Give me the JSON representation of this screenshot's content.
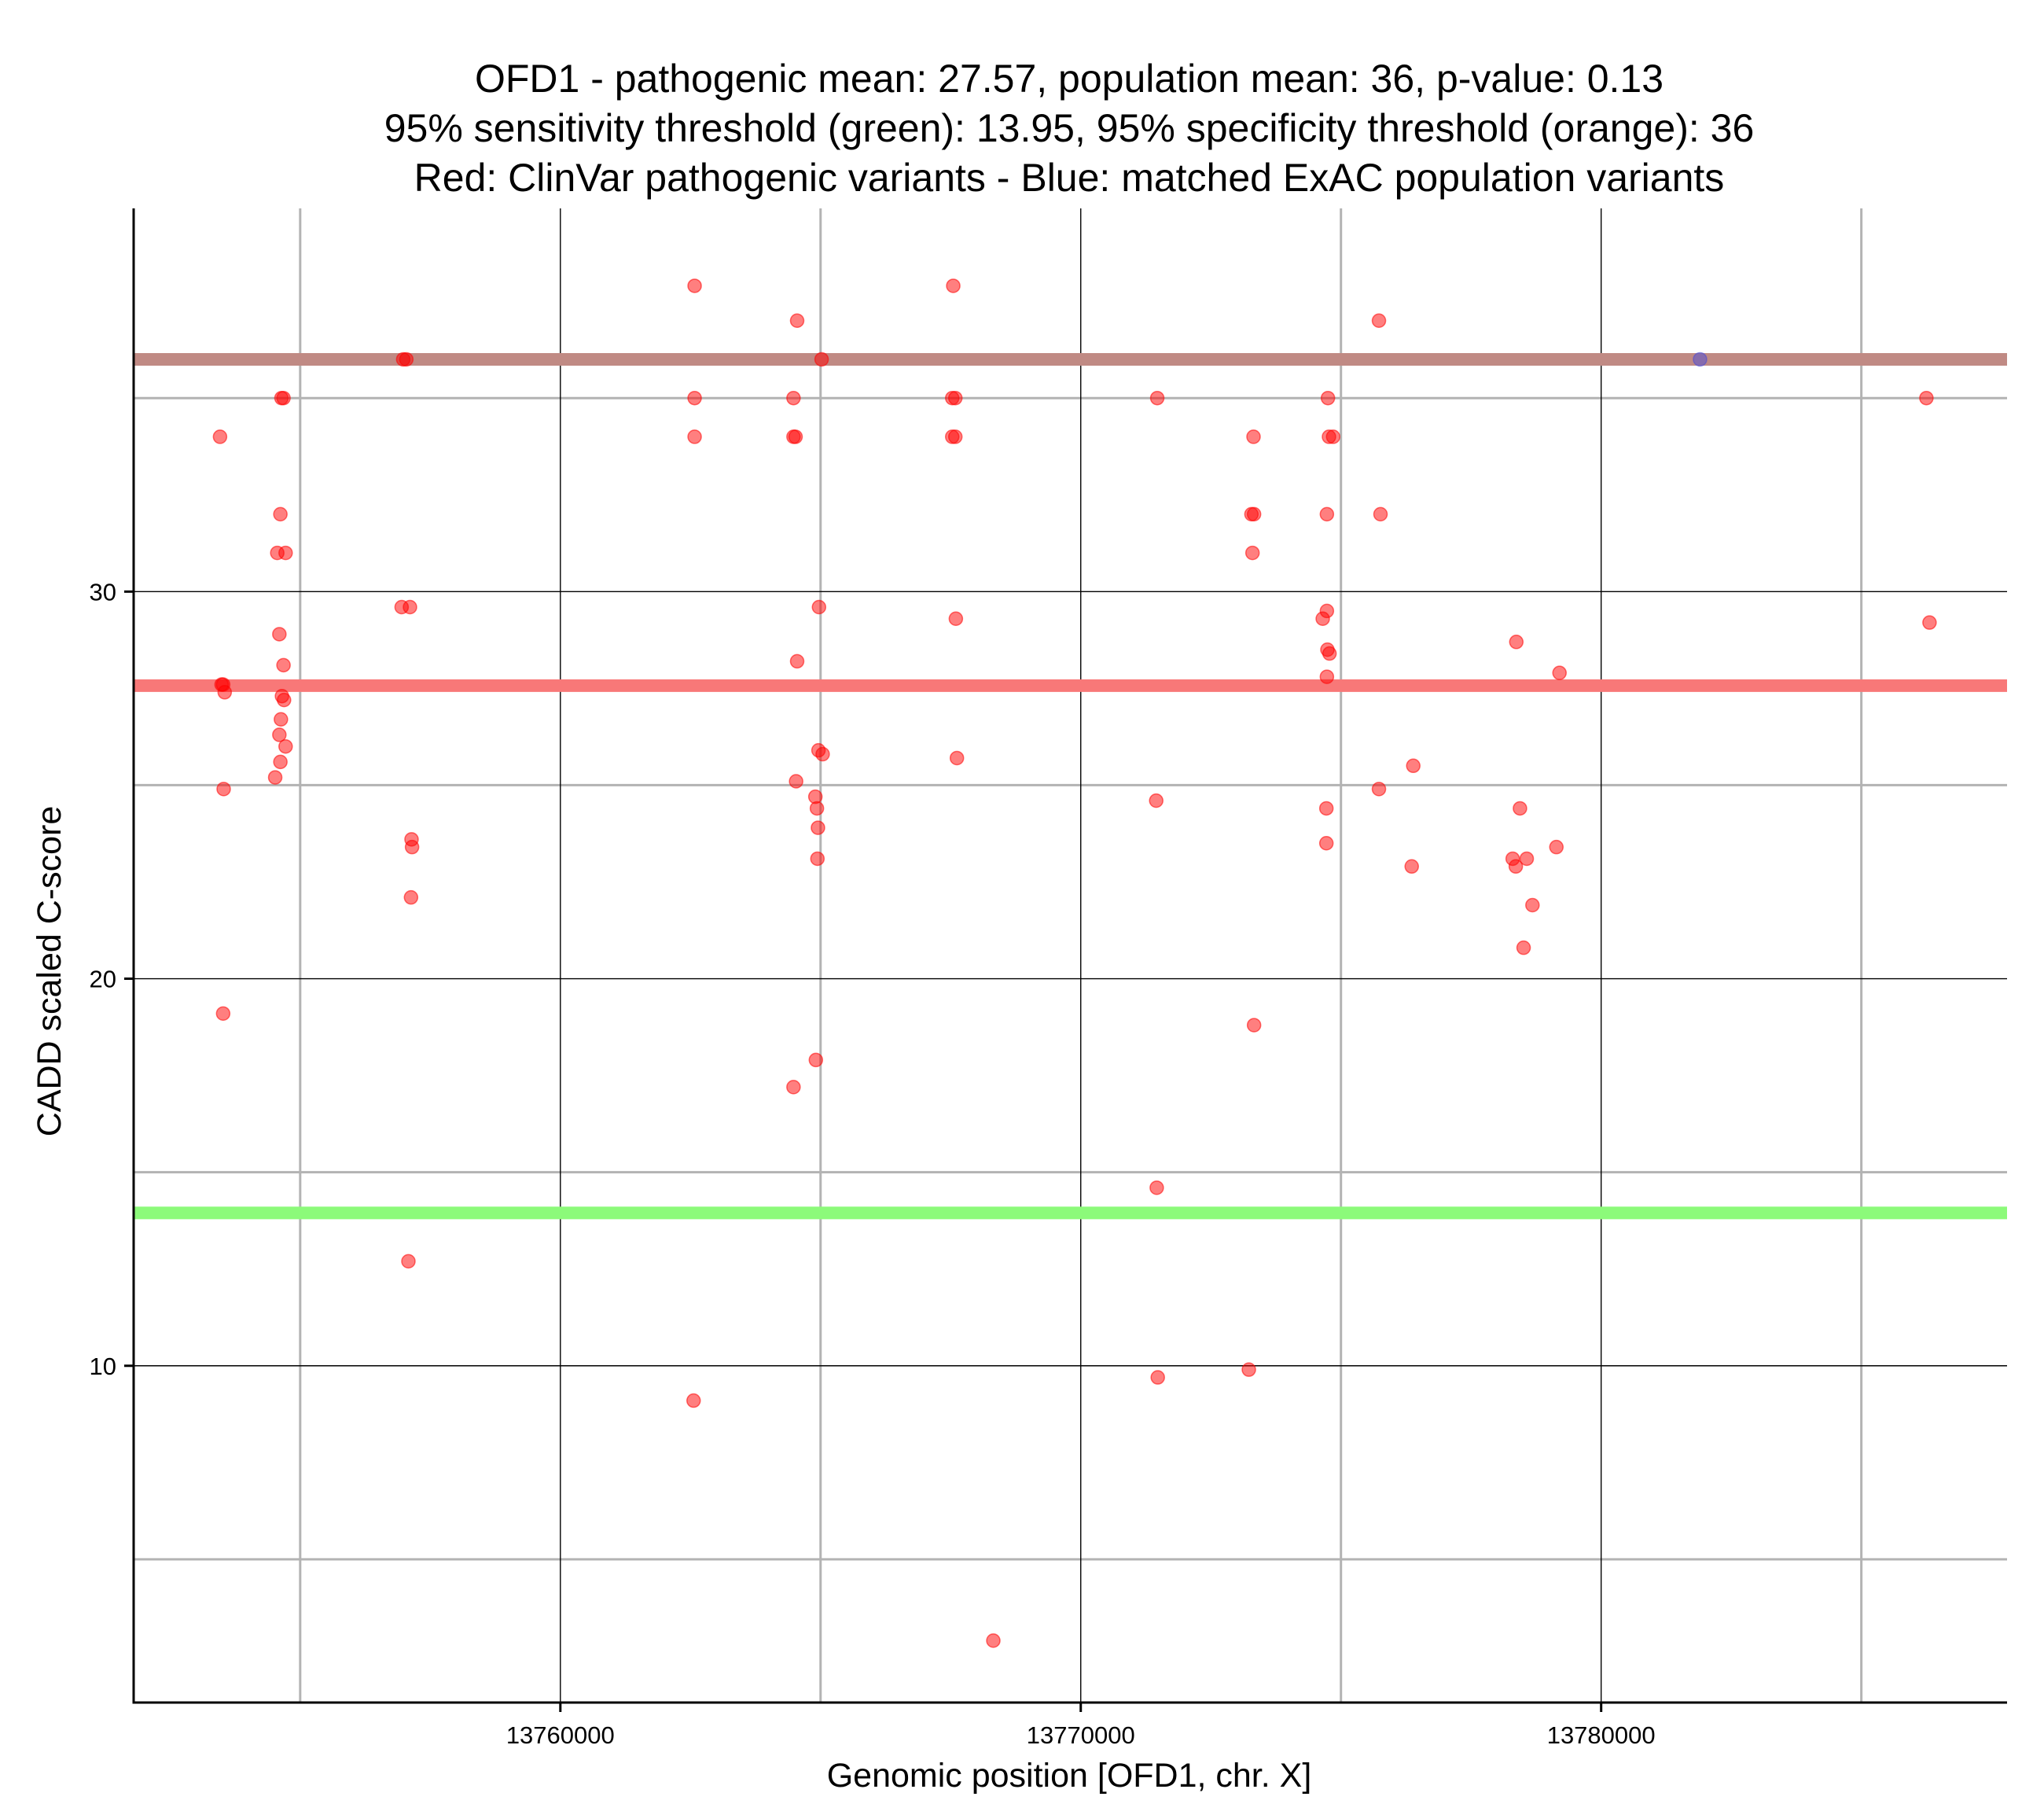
{
  "chart_data": {
    "type": "scatter",
    "title_lines": [
      "OFD1 - pathogenic mean: 27.57, population mean: 36, p-value: 0.13",
      "95% sensitivity threshold (green): 13.95, 95% specificity threshold (orange): 36",
      "Red: ClinVar pathogenic variants - Blue: matched ExAC population variants"
    ],
    "xlabel": "Genomic position [OFD1, chr. X]",
    "ylabel": "CADD scaled C-score",
    "xlim": [
      13751800,
      13787800
    ],
    "ylim": [
      1.3,
      39.9
    ],
    "x_ticks": [
      13760000,
      13770000,
      13780000
    ],
    "x_tick_labels": [
      "13760000",
      "13770000",
      "13780000"
    ],
    "x_minor": [
      13755000,
      13765000,
      13775000,
      13785000
    ],
    "y_ticks": [
      10,
      20,
      30
    ],
    "y_tick_labels": [
      "10",
      "20",
      "30"
    ],
    "y_minor": [
      5,
      15,
      25,
      35
    ],
    "colors": {
      "pathogenic": "#ff0000",
      "population": "#4b4bd6",
      "pathogenic_mean_line": "#f87878",
      "population_mean_line": "#c08a84",
      "sensitivity_line": "#8cfa7a"
    },
    "hlines": [
      {
        "name": "population-mean-line",
        "y": 36,
        "color": "#c08a84"
      },
      {
        "name": "pathogenic-mean-line",
        "y": 27.57,
        "color": "#f87878"
      },
      {
        "name": "sensitivity-threshold-line",
        "y": 13.95,
        "color": "#8cfa7a"
      }
    ],
    "series": [
      {
        "name": "ClinVar pathogenic variants",
        "color": "#ff0000",
        "points": [
          [
            13753460,
            34
          ],
          [
            13753490,
            27.6
          ],
          [
            13753520,
            27.6
          ],
          [
            13753550,
            27.4
          ],
          [
            13753530,
            24.9
          ],
          [
            13753520,
            19.1
          ],
          [
            13754640,
            35
          ],
          [
            13754680,
            35
          ],
          [
            13754620,
            32
          ],
          [
            13754560,
            31
          ],
          [
            13754720,
            31
          ],
          [
            13754600,
            28.9
          ],
          [
            13754680,
            28.1
          ],
          [
            13754650,
            27.3
          ],
          [
            13754690,
            27.2
          ],
          [
            13754630,
            26.7
          ],
          [
            13754600,
            26.3
          ],
          [
            13754720,
            26
          ],
          [
            13754620,
            25.6
          ],
          [
            13754520,
            25.2
          ],
          [
            13756980,
            36
          ],
          [
            13757040,
            36
          ],
          [
            13756950,
            29.6
          ],
          [
            13757110,
            29.6
          ],
          [
            13757140,
            23.6
          ],
          [
            13757150,
            23.4
          ],
          [
            13757130,
            22.1
          ],
          [
            13757080,
            12.7
          ],
          [
            13762580,
            37.9
          ],
          [
            13762580,
            35
          ],
          [
            13762580,
            34
          ],
          [
            13762560,
            9.1
          ],
          [
            13764550,
            37
          ],
          [
            13764480,
            35
          ],
          [
            13764480,
            34
          ],
          [
            13764520,
            34
          ],
          [
            13764550,
            28.2
          ],
          [
            13764530,
            25.1
          ],
          [
            13764480,
            17.2
          ],
          [
            13765020,
            36
          ],
          [
            13764970,
            29.6
          ],
          [
            13764960,
            25.9
          ],
          [
            13765040,
            25.8
          ],
          [
            13764900,
            24.7
          ],
          [
            13764930,
            24.4
          ],
          [
            13764950,
            23.9
          ],
          [
            13764940,
            23.1
          ],
          [
            13764910,
            17.9
          ],
          [
            13767550,
            37.9
          ],
          [
            13767530,
            35
          ],
          [
            13767590,
            35
          ],
          [
            13767530,
            34
          ],
          [
            13767590,
            34
          ],
          [
            13767600,
            29.3
          ],
          [
            13767620,
            25.7
          ],
          [
            13768320,
            2.9
          ],
          [
            13771470,
            35
          ],
          [
            13771450,
            24.6
          ],
          [
            13771460,
            14.6
          ],
          [
            13771480,
            9.7
          ],
          [
            13773320,
            34
          ],
          [
            13773280,
            32
          ],
          [
            13773330,
            32
          ],
          [
            13773300,
            31
          ],
          [
            13773330,
            18.8
          ],
          [
            13773230,
            9.9
          ],
          [
            13774750,
            35
          ],
          [
            13774770,
            34
          ],
          [
            13774850,
            34
          ],
          [
            13774730,
            32
          ],
          [
            13774730,
            29.5
          ],
          [
            13774650,
            29.3
          ],
          [
            13774740,
            28.5
          ],
          [
            13774780,
            28.4
          ],
          [
            13774730,
            27.8
          ],
          [
            13774720,
            24.4
          ],
          [
            13774720,
            23.5
          ],
          [
            13775730,
            37
          ],
          [
            13775760,
            32
          ],
          [
            13775730,
            24.9
          ],
          [
            13776390,
            25.5
          ],
          [
            13776360,
            22.9
          ],
          [
            13778370,
            28.7
          ],
          [
            13778440,
            24.4
          ],
          [
            13778300,
            23.1
          ],
          [
            13778570,
            23.1
          ],
          [
            13778360,
            22.9
          ],
          [
            13778680,
            21.9
          ],
          [
            13778510,
            20.8
          ],
          [
            13779140,
            23.4
          ],
          [
            13779200,
            27.9
          ],
          [
            13786250,
            35
          ],
          [
            13786310,
            29.2
          ]
        ]
      },
      {
        "name": "matched ExAC population variants",
        "color": "#4b4bd6",
        "points": [
          [
            13781900,
            36
          ]
        ]
      }
    ]
  }
}
